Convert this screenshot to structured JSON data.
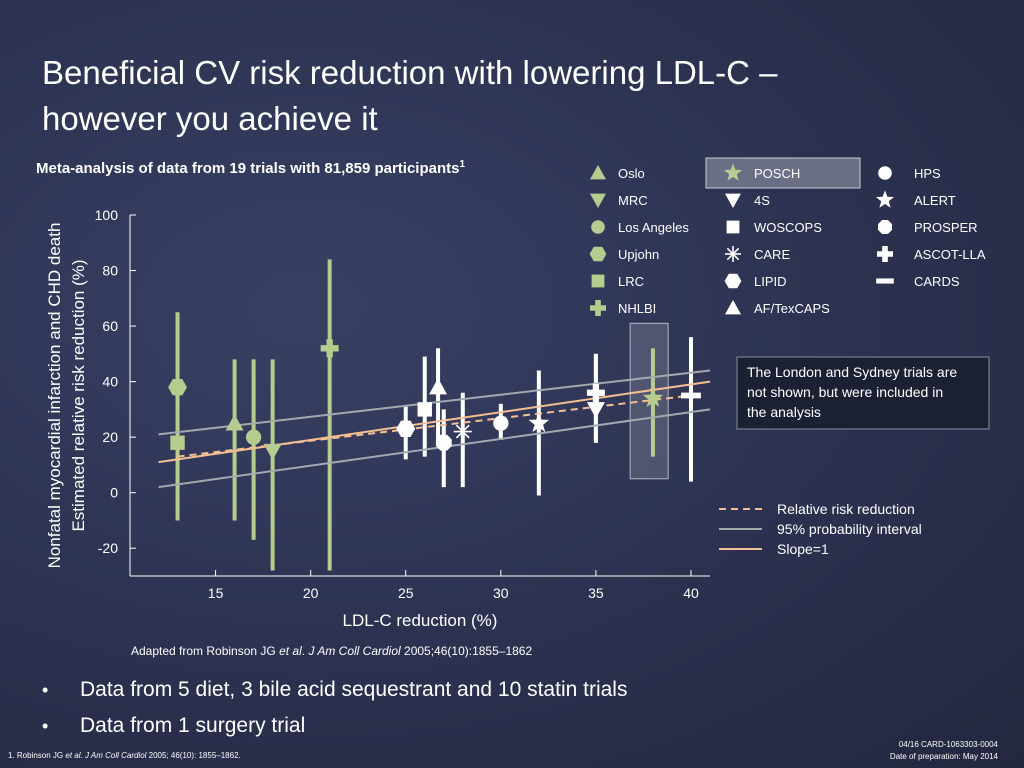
{
  "slide": {
    "title_line1": "Beneficial CV risk reduction with lowering LDL-C –",
    "title_line2": "however you achieve it",
    "subtitle": "Meta-analysis of data from 19 trials with 81,859 participants",
    "subtitle_sup": "1",
    "source_prefix": "Adapted from Robinson JG ",
    "source_etal": "et al",
    "source_mid": ". ",
    "source_journal": "J Am Coll Cardiol",
    "source_suffix": " 2005;46(10):1855–1862",
    "bullets": [
      "Data from 5 diet, 3 bile acid sequestrant and 10 statin trials",
      "Data from 1 surgery trial"
    ],
    "footnote_prefix": "1. Robinson JG ",
    "footnote_etal": "et al.",
    "footnote_journal": " J Am Coll Cardiol",
    "footnote_suffix": " 2005; 46(10): 1855–1862.",
    "code": "04/16 CARD-1063303-0004",
    "prep_date": "Date of preparation: May 2014"
  },
  "chart_data": {
    "type": "scatter",
    "xlabel": "LDL-C reduction (%)",
    "ylabel_line1": "Nonfatal myocardial infarction and CHD death",
    "ylabel_line2": "Estimated relative risk reduction (%)",
    "xlim": [
      10.5,
      41
    ],
    "ylim": [
      -30,
      100
    ],
    "xticks": [
      15,
      20,
      25,
      30,
      35,
      40
    ],
    "yticks": [
      100,
      80,
      60,
      40,
      20,
      0,
      -20
    ],
    "grid": false,
    "colors": {
      "green": "#b6cc8f",
      "white": "#ffffff",
      "orange": "#f4bf94",
      "gray": "#a5a7ae"
    },
    "trials": [
      {
        "name": "Oslo",
        "marker": "triangle-up",
        "color": "green",
        "x": 16.0,
        "y": 25,
        "ci": [
          -10,
          48
        ]
      },
      {
        "name": "MRC",
        "marker": "triangle-down",
        "color": "green",
        "x": 18.0,
        "y": 15,
        "ci": [
          -28,
          48
        ]
      },
      {
        "name": "Los Angeles",
        "marker": "circle",
        "color": "green",
        "x": 17.0,
        "y": 20,
        "ci": [
          -17,
          48
        ]
      },
      {
        "name": "Upjohn",
        "marker": "hexagon",
        "color": "green",
        "x": 13.0,
        "y": 38,
        "ci": [
          -10,
          65
        ]
      },
      {
        "name": "LRC",
        "marker": "square",
        "color": "green",
        "x": 13.0,
        "y": 18,
        "ci": null
      },
      {
        "name": "NHLBI",
        "marker": "cross",
        "color": "green",
        "x": 21.0,
        "y": 52,
        "ci": [
          -28,
          84
        ]
      },
      {
        "name": "POSCH",
        "marker": "star",
        "color": "green",
        "x": 38.0,
        "y": 34,
        "ci": [
          13,
          52
        ]
      },
      {
        "name": "4S",
        "marker": "triangle-down",
        "color": "white",
        "x": 35.0,
        "y": 30,
        "ci": [
          18,
          50
        ]
      },
      {
        "name": "WOSCOPS",
        "marker": "square",
        "color": "white",
        "x": 26.0,
        "y": 30,
        "ci": [
          13,
          49
        ]
      },
      {
        "name": "CARE",
        "marker": "asterisk",
        "color": "white",
        "x": 28.0,
        "y": 22,
        "ci": [
          2,
          36
        ]
      },
      {
        "name": "LIPID",
        "marker": "hexagon",
        "color": "white",
        "x": 25.0,
        "y": 23,
        "ci": [
          12,
          31
        ]
      },
      {
        "name": "AF/TexCAPS",
        "marker": "triangle-up",
        "color": "white",
        "x": 26.7,
        "y": 38,
        "ci": [
          17,
          52
        ]
      },
      {
        "name": "HPS",
        "marker": "circle",
        "color": "white",
        "x": 30.0,
        "y": 25,
        "ci": [
          19,
          32
        ]
      },
      {
        "name": "ALERT",
        "marker": "star",
        "color": "white",
        "x": 32.0,
        "y": 25,
        "ci": [
          -1,
          44
        ]
      },
      {
        "name": "PROSPER",
        "marker": "octagon",
        "color": "white",
        "x": 27.0,
        "y": 18,
        "ci": [
          2,
          30
        ]
      },
      {
        "name": "ASCOT-LLA",
        "marker": "cross",
        "color": "white",
        "x": 35.0,
        "y": 36,
        "ci": [
          18,
          50
        ]
      },
      {
        "name": "CARDS",
        "marker": "dash",
        "color": "white",
        "x": 40.0,
        "y": 35,
        "ci": [
          4,
          56
        ]
      }
    ],
    "lines": [
      {
        "name": "Relative risk reduction",
        "style": "dashed",
        "color": "orange",
        "x": [
          13,
          40
        ],
        "y": [
          13,
          35
        ]
      },
      {
        "name": "95% probability interval",
        "style": "solid",
        "color": "gray",
        "x": [
          12,
          41
        ],
        "y": [
          21,
          44
        ]
      },
      {
        "name": "95% probability interval",
        "style": "solid",
        "color": "gray",
        "x": [
          12,
          41
        ],
        "y": [
          2,
          30
        ]
      },
      {
        "name": "Slope=1",
        "style": "solid",
        "color": "orange",
        "x": [
          12,
          41
        ],
        "y": [
          11,
          40
        ]
      }
    ],
    "posch_highlight": {
      "x": [
        36.8,
        38.8
      ],
      "y": [
        5,
        61
      ]
    },
    "legend": [
      {
        "label": "Oslo",
        "marker": "triangle-up",
        "color": "green"
      },
      {
        "label": "MRC",
        "marker": "triangle-down",
        "color": "green"
      },
      {
        "label": "Los Angeles",
        "marker": "circle",
        "color": "green"
      },
      {
        "label": "Upjohn",
        "marker": "hexagon",
        "color": "green"
      },
      {
        "label": "LRC",
        "marker": "square",
        "color": "green"
      },
      {
        "label": "NHLBI",
        "marker": "cross",
        "color": "green"
      },
      {
        "label": "POSCH",
        "marker": "star",
        "color": "green",
        "highlight": true
      },
      {
        "label": "4S",
        "marker": "triangle-down",
        "color": "white"
      },
      {
        "label": "WOSCOPS",
        "marker": "square",
        "color": "white"
      },
      {
        "label": "CARE",
        "marker": "asterisk",
        "color": "white"
      },
      {
        "label": "LIPID",
        "marker": "hexagon",
        "color": "white"
      },
      {
        "label": "AF/TexCAPS",
        "marker": "triangle-up",
        "color": "white"
      },
      {
        "label": "HPS",
        "marker": "circle",
        "color": "white"
      },
      {
        "label": "ALERT",
        "marker": "star",
        "color": "white"
      },
      {
        "label": "PROSPER",
        "marker": "octagon",
        "color": "white"
      },
      {
        "label": "ASCOT-LLA",
        "marker": "cross",
        "color": "white"
      },
      {
        "label": "CARDS",
        "marker": "dash",
        "color": "white"
      }
    ],
    "annotation": "The London and Sydney trials are not shown, but were included in the analysis",
    "line_legend": [
      {
        "label": "Relative risk reduction",
        "style": "dashed",
        "color": "orange"
      },
      {
        "label": "95% probability interval",
        "style": "solid",
        "color": "gray"
      },
      {
        "label": "Slope=1",
        "style": "solid",
        "color": "orange"
      }
    ]
  }
}
